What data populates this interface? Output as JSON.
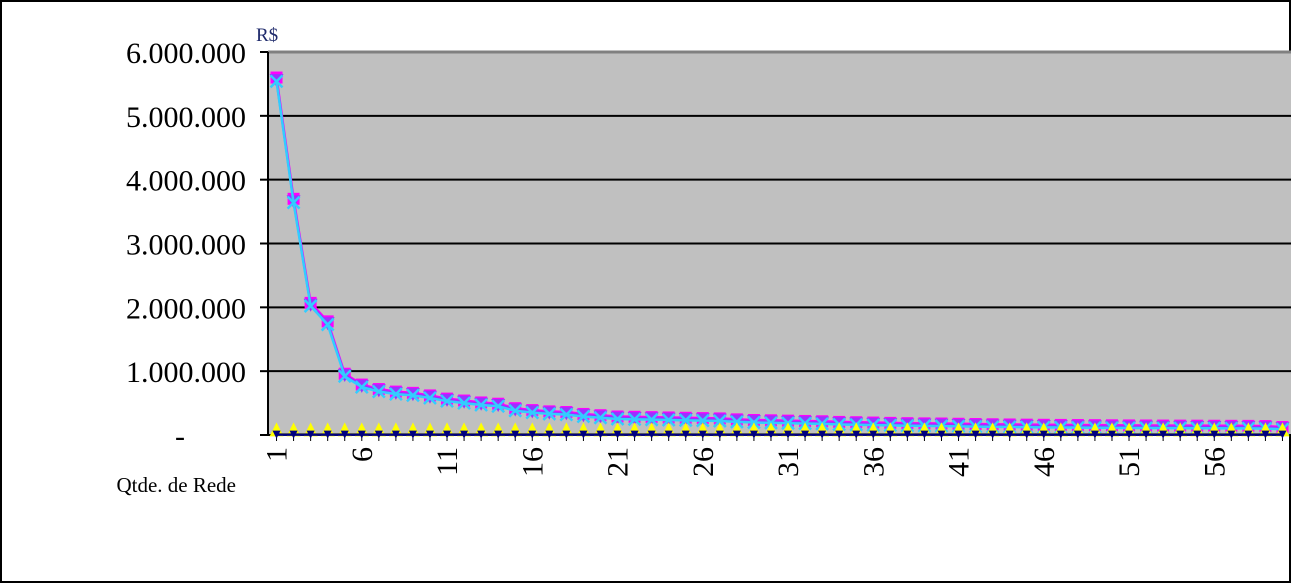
{
  "chart_data": {
    "type": "line",
    "unit_label": "R$",
    "xlabel": "Qtde. de Rede",
    "ylim": [
      0,
      6000000
    ],
    "y_ticks": [
      {
        "value": 0,
        "label": "-"
      },
      {
        "value": 1000000,
        "label": "1.000.000"
      },
      {
        "value": 2000000,
        "label": "2.000.000"
      },
      {
        "value": 3000000,
        "label": "3.000.000"
      },
      {
        "value": 4000000,
        "label": "4.000.000"
      },
      {
        "value": 5000000,
        "label": "5.000.000"
      },
      {
        "value": 6000000,
        "label": "6.000.000"
      }
    ],
    "x_ticks": [
      "1",
      "6",
      "11",
      "16",
      "21",
      "26",
      "31",
      "36",
      "41",
      "46",
      "51",
      "56"
    ],
    "x": [
      1,
      2,
      3,
      4,
      5,
      6,
      7,
      8,
      9,
      10,
      11,
      12,
      13,
      14,
      15,
      16,
      17,
      18,
      19,
      20,
      21,
      22,
      23,
      24,
      25,
      26,
      27,
      28,
      29,
      30,
      31,
      32,
      33,
      34,
      35,
      36,
      37,
      38,
      39,
      40,
      41,
      42,
      43,
      44,
      45,
      46,
      47,
      48,
      49,
      50,
      51,
      52,
      53,
      54,
      55,
      56,
      57,
      58,
      59,
      60
    ],
    "grid": true,
    "plot_background": "#c0c0c0",
    "series": [
      {
        "color": "#ff00ff",
        "marker": "square",
        "values": [
          5600000,
          3700000,
          2070000,
          1780000,
          960000,
          790000,
          720000,
          680000,
          660000,
          620000,
          570000,
          540000,
          510000,
          490000,
          420000,
          390000,
          370000,
          360000,
          330000,
          310000,
          290000,
          285000,
          280000,
          275000,
          270000,
          265000,
          260000,
          245000,
          235000,
          230000,
          225000,
          220000,
          215000,
          205000,
          200000,
          195000,
          190000,
          185000,
          182000,
          180000,
          176000,
          172000,
          168000,
          165000,
          162000,
          160000,
          158000,
          156000,
          154000,
          152000,
          150000,
          149000,
          148000,
          147000,
          146000,
          145000,
          144000,
          143000,
          140000,
          125000
        ]
      },
      {
        "color": "#9933ff",
        "marker": "triangle-down",
        "values": [
          5560000,
          3660000,
          2040000,
          1750000,
          940000,
          770000,
          700000,
          660000,
          640000,
          600000,
          550000,
          520000,
          490000,
          470000,
          400000,
          370000,
          350000,
          340000,
          310000,
          290000,
          270000,
          265000,
          260000,
          255000,
          250000,
          245000,
          240000,
          225000,
          215000,
          210000,
          205000,
          200000,
          195000,
          185000,
          180000,
          175000,
          170000,
          165000,
          162000,
          160000,
          156000,
          152000,
          148000,
          145000,
          142000,
          140000,
          138000,
          136000,
          134000,
          132000,
          130000,
          129000,
          128000,
          127000,
          126000,
          125000,
          124000,
          123000,
          120000,
          105000
        ]
      },
      {
        "color": "#33ccff",
        "marker": "x",
        "values": [
          5540000,
          3640000,
          2020000,
          1730000,
          920000,
          750000,
          680000,
          640000,
          620000,
          580000,
          530000,
          500000,
          470000,
          450000,
          380000,
          350000,
          330000,
          320000,
          290000,
          270000,
          250000,
          245000,
          240000,
          235000,
          230000,
          225000,
          220000,
          205000,
          195000,
          190000,
          185000,
          180000,
          175000,
          165000,
          160000,
          155000,
          150000,
          145000,
          142000,
          140000,
          136000,
          132000,
          128000,
          125000,
          122000,
          120000,
          118000,
          116000,
          114000,
          112000,
          110000,
          109000,
          108000,
          107000,
          106000,
          105000,
          104000,
          103000,
          100000,
          90000
        ]
      },
      {
        "color": "#ffff00",
        "marker": "triangle-up",
        "values": [
          10000,
          10000,
          10000,
          10000,
          10000,
          10000,
          10000,
          10000,
          10000,
          10000,
          10000,
          10000,
          10000,
          10000,
          10000,
          10000,
          10000,
          10000,
          10000,
          10000,
          10000,
          10000,
          10000,
          10000,
          10000,
          10000,
          10000,
          10000,
          10000,
          10000,
          10000,
          10000,
          10000,
          10000,
          10000,
          10000,
          10000,
          10000,
          10000,
          10000,
          10000,
          10000,
          10000,
          10000,
          10000,
          10000,
          10000,
          10000,
          10000,
          10000,
          10000,
          10000,
          10000,
          10000,
          10000,
          10000,
          10000,
          10000,
          10000,
          10000
        ]
      },
      {
        "color": "#000080",
        "marker": "triangle-down-small",
        "values": [
          5000,
          5000,
          5000,
          5000,
          5000,
          5000,
          5000,
          5000,
          5000,
          5000,
          5000,
          5000,
          5000,
          5000,
          5000,
          5000,
          5000,
          5000,
          5000,
          5000,
          5000,
          5000,
          5000,
          5000,
          5000,
          5000,
          5000,
          5000,
          5000,
          5000,
          5000,
          5000,
          5000,
          5000,
          5000,
          5000,
          5000,
          5000,
          5000,
          5000,
          5000,
          5000,
          5000,
          5000,
          5000,
          5000,
          5000,
          5000,
          5000,
          5000,
          5000,
          5000,
          5000,
          5000,
          5000,
          5000,
          5000,
          5000,
          5000,
          5000
        ]
      }
    ]
  }
}
